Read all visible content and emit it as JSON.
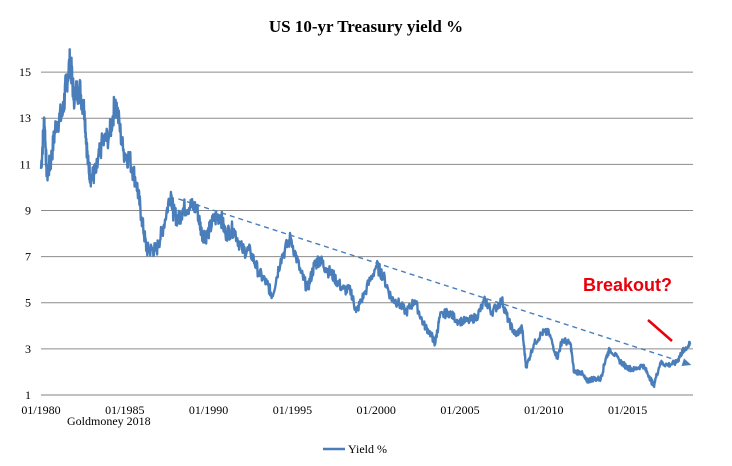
{
  "chart_data": {
    "type": "line",
    "title": "US 10-yr Treasury yield %",
    "xlabel": "",
    "ylabel": "",
    "source_note": "Goldmoney 2018",
    "x_tick_labels": [
      "01/1980",
      "01/1985",
      "01/1990",
      "01/1995",
      "01/2000",
      "01/2005",
      "01/2010",
      "01/2015"
    ],
    "y_ticks": [
      1,
      3,
      5,
      7,
      9,
      11,
      13,
      15
    ],
    "ylim": [
      1,
      16
    ],
    "xlim": [
      1980.0,
      2018.9
    ],
    "grid": "horizontal",
    "legend_placement": "bottom",
    "series": [
      {
        "name": "Yield %",
        "color": "#4A7EBB",
        "x": [
          1980.0,
          1980.2,
          1980.35,
          1980.6,
          1980.9,
          1981.3,
          1981.5,
          1981.75,
          1981.95,
          1982.3,
          1982.6,
          1982.8,
          1983.0,
          1983.3,
          1983.6,
          1984.1,
          1984.45,
          1984.9,
          1985.3,
          1985.7,
          1986.0,
          1986.3,
          1986.6,
          1986.9,
          1987.3,
          1987.75,
          1987.9,
          1988.2,
          1988.5,
          1988.9,
          1989.3,
          1989.6,
          1989.9,
          1990.3,
          1990.7,
          1991.0,
          1991.5,
          1992.0,
          1992.5,
          1993.0,
          1993.5,
          1993.8,
          1994.3,
          1994.9,
          1995.5,
          1995.9,
          1996.3,
          1996.6,
          1997.0,
          1997.5,
          1998.0,
          1998.5,
          1998.8,
          1999.3,
          2000.0,
          2000.4,
          2000.9,
          2001.3,
          2001.8,
          2002.3,
          2002.8,
          2003.3,
          2003.5,
          2003.8,
          2004.3,
          2004.9,
          2005.5,
          2006.0,
          2006.5,
          2006.9,
          2007.5,
          2007.9,
          2008.3,
          2008.7,
          2008.95,
          2009.4,
          2009.9,
          2010.3,
          2010.8,
          2011.1,
          2011.6,
          2011.8,
          2012.2,
          2012.55,
          2012.9,
          2013.4,
          2013.7,
          2013.95,
          2014.5,
          2014.95,
          2015.4,
          2015.9,
          2016.3,
          2016.55,
          2016.95,
          2017.4,
          2017.9,
          2018.2,
          2018.4,
          2018.75
        ],
        "values": [
          10.8,
          13.0,
          10.5,
          11.2,
          12.8,
          13.2,
          14.5,
          15.5,
          14.0,
          14.3,
          13.3,
          11.0,
          10.4,
          10.7,
          11.8,
          12.3,
          13.8,
          11.6,
          11.2,
          10.2,
          8.7,
          7.3,
          7.3,
          7.3,
          8.3,
          9.8,
          8.9,
          8.6,
          9.1,
          9.2,
          9.1,
          8.0,
          7.9,
          8.6,
          8.8,
          8.0,
          8.2,
          7.3,
          7.2,
          6.3,
          5.8,
          5.3,
          6.9,
          7.8,
          6.3,
          5.6,
          6.6,
          6.9,
          6.5,
          6.1,
          5.6,
          5.5,
          4.6,
          5.4,
          6.6,
          6.2,
          5.2,
          5.0,
          4.6,
          5.1,
          4.1,
          3.6,
          3.2,
          4.4,
          4.6,
          4.2,
          4.2,
          4.4,
          5.1,
          4.6,
          5.1,
          4.2,
          3.6,
          3.9,
          2.2,
          3.2,
          3.7,
          3.7,
          2.6,
          3.4,
          3.2,
          2.0,
          2.0,
          1.6,
          1.7,
          1.7,
          2.6,
          3.0,
          2.5,
          2.2,
          2.1,
          2.3,
          1.8,
          1.4,
          2.4,
          2.3,
          2.4,
          2.8,
          3.0,
          3.2
        ]
      }
    ],
    "trendline": {
      "style": "dashed",
      "color": "#4A7EBB",
      "from": {
        "x": 1988.2,
        "y": 9.5
      },
      "to": {
        "x": 2018.8,
        "y": 2.3
      }
    },
    "annotation": {
      "text": "Breakout?",
      "color": "#E8000B"
    }
  }
}
